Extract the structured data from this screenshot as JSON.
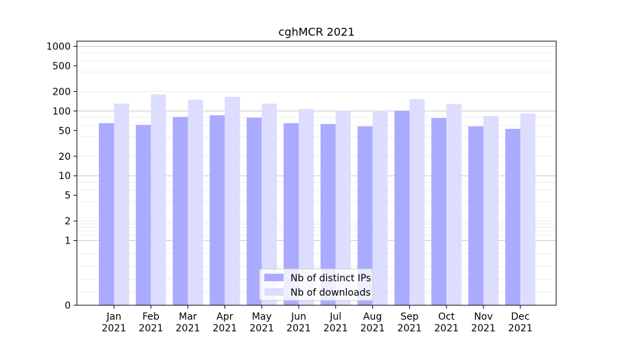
{
  "chart_data": {
    "type": "bar",
    "title": "cghMCR 2021",
    "xlabel": "",
    "ylabel": "",
    "yscale": "symlog",
    "ylim": [
      0,
      1200
    ],
    "y_ticks": [
      0,
      1,
      2,
      5,
      10,
      20,
      50,
      100,
      200,
      500,
      1000
    ],
    "grid": "horizontal",
    "legend_position": "lower-center",
    "categories": [
      "Jan\n2021",
      "Feb\n2021",
      "Mar\n2021",
      "Apr\n2021",
      "May\n2021",
      "Jun\n2021",
      "Jul\n2021",
      "Aug\n2021",
      "Sep\n2021",
      "Oct\n2021",
      "Nov\n2021",
      "Dec\n2021"
    ],
    "series": [
      {
        "name": "Nb of distinct IPs",
        "color": "#aaaaff",
        "values": [
          65,
          61,
          81,
          86,
          79,
          65,
          63,
          58,
          101,
          78,
          58,
          53
        ]
      },
      {
        "name": "Nb of downloads",
        "color": "#ddddff",
        "values": [
          130,
          181,
          150,
          166,
          130,
          107,
          101,
          101,
          153,
          128,
          84,
          91
        ]
      }
    ]
  }
}
